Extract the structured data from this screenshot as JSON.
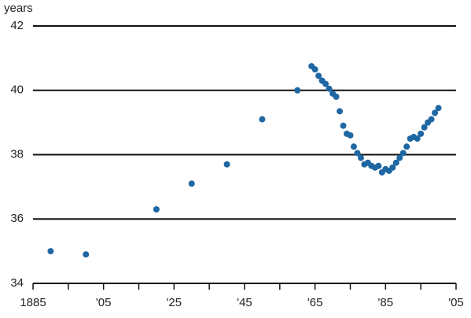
{
  "chart_data": {
    "type": "scatter",
    "y_label": "years",
    "x": [
      1890,
      1900,
      1920,
      1930,
      1940,
      1950,
      1960,
      1964,
      1965,
      1966,
      1967,
      1968,
      1969,
      1970,
      1971,
      1972,
      1973,
      1974,
      1975,
      1976,
      1977,
      1978,
      1979,
      1980,
      1981,
      1982,
      1983,
      1984,
      1985,
      1986,
      1987,
      1988,
      1989,
      1990,
      1991,
      1992,
      1993,
      1994,
      1995,
      1996,
      1997,
      1998,
      1999,
      2000
    ],
    "values": [
      35.0,
      34.9,
      36.3,
      37.1,
      37.7,
      39.1,
      40.0,
      40.75,
      40.65,
      40.45,
      40.3,
      40.2,
      40.05,
      39.9,
      39.8,
      39.35,
      38.9,
      38.65,
      38.6,
      38.25,
      38.05,
      37.9,
      37.7,
      37.75,
      37.65,
      37.6,
      37.65,
      37.45,
      37.55,
      37.5,
      37.6,
      37.75,
      37.9,
      38.05,
      38.25,
      38.5,
      38.55,
      38.5,
      38.65,
      38.85,
      39.0,
      39.1,
      39.3,
      39.45
    ],
    "color": "#1f67a3",
    "xlim": [
      1885,
      2005
    ],
    "xticks": [
      1885,
      {
        "value": 1905,
        "label": "'05"
      },
      {
        "value": 1925,
        "label": "'25"
      },
      {
        "value": 1945,
        "label": "'45"
      },
      {
        "value": 1965,
        "label": "'65"
      },
      {
        "value": 1985,
        "label": "'85"
      },
      {
        "value": 2005,
        "label": "'05"
      }
    ],
    "xminorticks": [
      1895,
      1915,
      1935,
      1955,
      1975,
      1995
    ],
    "ylim": [
      34,
      42
    ],
    "yticks": [
      34,
      36,
      38,
      40,
      42
    ],
    "grid": true
  }
}
